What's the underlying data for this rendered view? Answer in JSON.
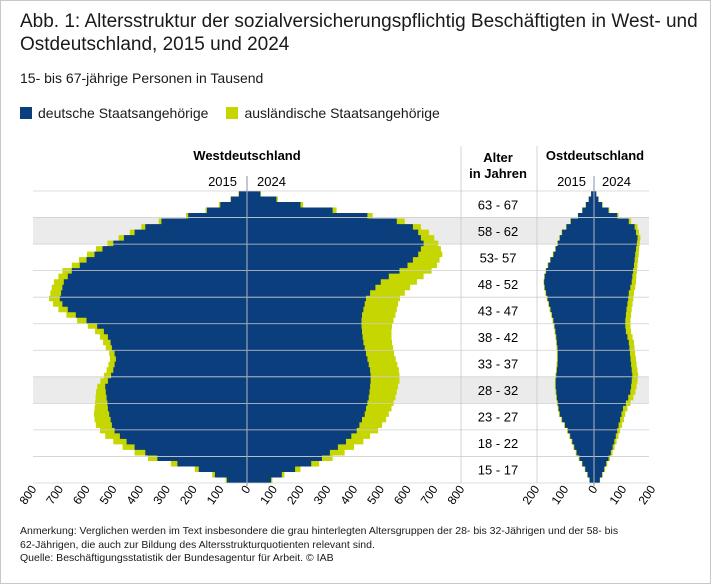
{
  "title": "Abb. 1: Altersstruktur der sozialversicherungspflichtig Beschäftigten in West- und Ostdeutschland, 2015 und 2024",
  "subtitle": "15- bis 67-jährige Personen in Tausend",
  "legend": {
    "german": "deutsche Staatsangehörige",
    "foreign": "ausländische Staatsangehörige"
  },
  "colors": {
    "german": "#0b3e7c",
    "foreign": "#c5d600",
    "highlight": "#ebebeb",
    "axis": "#9aa3b3"
  },
  "headers": {
    "west": "Westdeutschland",
    "east": "Ostdeutschland",
    "age_line1": "Alter",
    "age_line2": "in Jahren",
    "west_left_year": "2015",
    "west_right_year": "2024",
    "east_left_year": "2015",
    "east_right_year": "2024"
  },
  "age_groups": [
    "63 - 67",
    "58 - 62",
    "53- 57",
    "48 - 52",
    "43 - 47",
    "38 - 42",
    "33 - 37",
    "28 - 32",
    "23 - 27",
    "18 - 22",
    "15 - 17"
  ],
  "highlighted_groups": [
    "58 - 62",
    "28 - 32"
  ],
  "note_lines": [
    "Anmerkung: Verglichen werden im Text insbesondere die grau hinterlegten Altersgruppen der 28- bis 32-Jährigen und der 58- bis",
    "62-Jährigen, die auch zur Bildung des Altersstrukturquotienten relevant sind.",
    "Quelle: Beschäftigungsstatistik der Bundesagentur für Arbeit. © IAB"
  ],
  "chart_data": [
    {
      "type": "area",
      "name": "Westdeutschland",
      "x_unit": "Alter in Jahren",
      "value_unit": "Tausend",
      "xlim_left": [
        0,
        800
      ],
      "xlim_right": [
        0,
        800
      ],
      "ticks_left": [
        "800",
        "700",
        "600",
        "500",
        "400",
        "300",
        "200",
        "100",
        "0"
      ],
      "ticks_right": [
        "100",
        "200",
        "300",
        "400",
        "500",
        "600",
        "700",
        "800"
      ],
      "ages": [
        15,
        16,
        17,
        18,
        19,
        20,
        21,
        22,
        23,
        24,
        25,
        26,
        27,
        28,
        29,
        30,
        31,
        32,
        33,
        34,
        35,
        36,
        37,
        38,
        39,
        40,
        41,
        42,
        43,
        44,
        45,
        46,
        47,
        48,
        49,
        50,
        51,
        52,
        53,
        54,
        55,
        56,
        57,
        58,
        59,
        60,
        61,
        62,
        63,
        64,
        65,
        66,
        67
      ],
      "left_2015": {
        "german_total": [
          75,
          120,
          180,
          260,
          335,
          380,
          420,
          450,
          475,
          495,
          505,
          510,
          515,
          520,
          522,
          525,
          528,
          530,
          520,
          508,
          500,
          495,
          490,
          495,
          505,
          510,
          520,
          535,
          560,
          600,
          640,
          670,
          690,
          700,
          695,
          690,
          685,
          670,
          655,
          625,
          600,
          570,
          540,
          500,
          460,
          420,
          380,
          320,
          220,
          150,
          100,
          60,
          30
        ],
        "with_foreign": [
          80,
          130,
          195,
          285,
          370,
          420,
          465,
          500,
          530,
          550,
          565,
          570,
          572,
          570,
          568,
          566,
          564,
          560,
          548,
          535,
          525,
          518,
          512,
          515,
          528,
          538,
          550,
          568,
          595,
          635,
          675,
          705,
          725,
          740,
          735,
          730,
          722,
          705,
          690,
          655,
          628,
          598,
          565,
          522,
          480,
          438,
          395,
          330,
          228,
          155,
          105,
          62,
          32
        ]
      },
      "right_2024": {
        "german_total": [
          90,
          130,
          180,
          240,
          280,
          310,
          340,
          370,
          390,
          410,
          420,
          430,
          440,
          445,
          450,
          455,
          458,
          460,
          462,
          462,
          460,
          455,
          450,
          445,
          440,
          435,
          432,
          430,
          428,
          428,
          430,
          435,
          440,
          445,
          460,
          480,
          500,
          530,
          570,
          600,
          620,
          640,
          650,
          660,
          650,
          640,
          620,
          560,
          450,
          320,
          200,
          110,
          50
        ],
        "with_foreign": [
          95,
          140,
          200,
          270,
          320,
          365,
          400,
          435,
          460,
          490,
          505,
          520,
          530,
          540,
          548,
          555,
          560,
          565,
          570,
          570,
          568,
          562,
          556,
          550,
          546,
          542,
          540,
          540,
          542,
          548,
          555,
          560,
          565,
          572,
          590,
          610,
          635,
          660,
          690,
          710,
          720,
          730,
          725,
          715,
          700,
          680,
          650,
          590,
          470,
          335,
          210,
          115,
          52
        ]
      }
    },
    {
      "type": "area",
      "name": "Ostdeutschland",
      "x_unit": "Alter in Jahren",
      "value_unit": "Tausend",
      "xlim_left": [
        0,
        200
      ],
      "xlim_right": [
        0,
        200
      ],
      "ticks_left": [
        "200",
        "100",
        "0"
      ],
      "ticks_right": [
        "100",
        "200"
      ],
      "ages": [
        15,
        16,
        17,
        18,
        19,
        20,
        21,
        22,
        23,
        24,
        25,
        26,
        27,
        28,
        29,
        30,
        31,
        32,
        33,
        34,
        35,
        36,
        37,
        38,
        39,
        40,
        41,
        42,
        43,
        44,
        45,
        46,
        47,
        48,
        49,
        50,
        51,
        52,
        53,
        54,
        55,
        56,
        57,
        58,
        59,
        60,
        61,
        62,
        63,
        64,
        65,
        66,
        67
      ],
      "left_2015": {
        "german_total": [
          15,
          22,
          30,
          40,
          50,
          60,
          68,
          75,
          82,
          90,
          100,
          110,
          118,
          122,
          125,
          128,
          130,
          132,
          132,
          130,
          128,
          126,
          125,
          125,
          126,
          128,
          130,
          133,
          136,
          140,
          145,
          150,
          155,
          160,
          165,
          170,
          172,
          170,
          165,
          158,
          150,
          140,
          132,
          125,
          118,
          110,
          95,
          80,
          55,
          40,
          28,
          18,
          10
        ],
        "with_foreign": [
          16,
          23,
          32,
          42,
          53,
          63,
          71,
          78,
          85,
          93,
          103,
          113,
          121,
          125,
          128,
          131,
          133,
          135,
          135,
          133,
          131,
          129,
          128,
          128,
          129,
          131,
          133,
          136,
          139,
          143,
          148,
          153,
          158,
          163,
          168,
          172,
          174,
          172,
          167,
          160,
          152,
          142,
          134,
          127,
          120,
          112,
          97,
          82,
          56,
          41,
          29,
          19,
          10
        ]
      },
      "right_2024": {
        "german_total": [
          20,
          28,
          35,
          42,
          50,
          58,
          64,
          70,
          75,
          80,
          85,
          90,
          95,
          100,
          110,
          118,
          125,
          128,
          130,
          132,
          130,
          128,
          126,
          124,
          122,
          120,
          115,
          110,
          108,
          108,
          110,
          112,
          115,
          118,
          120,
          125,
          130,
          132,
          135,
          138,
          140,
          142,
          145,
          148,
          150,
          145,
          140,
          120,
          80,
          50,
          28,
          15,
          8
        ],
        "with_foreign": [
          21,
          30,
          38,
          46,
          55,
          64,
          71,
          78,
          84,
          90,
          97,
          103,
          108,
          115,
          126,
          136,
          143,
          147,
          150,
          152,
          150,
          147,
          145,
          142,
          140,
          138,
          133,
          128,
          126,
          126,
          128,
          130,
          133,
          136,
          138,
          142,
          145,
          146,
          148,
          150,
          152,
          154,
          156,
          158,
          160,
          155,
          150,
          128,
          85,
          53,
          30,
          16,
          8
        ]
      }
    }
  ]
}
